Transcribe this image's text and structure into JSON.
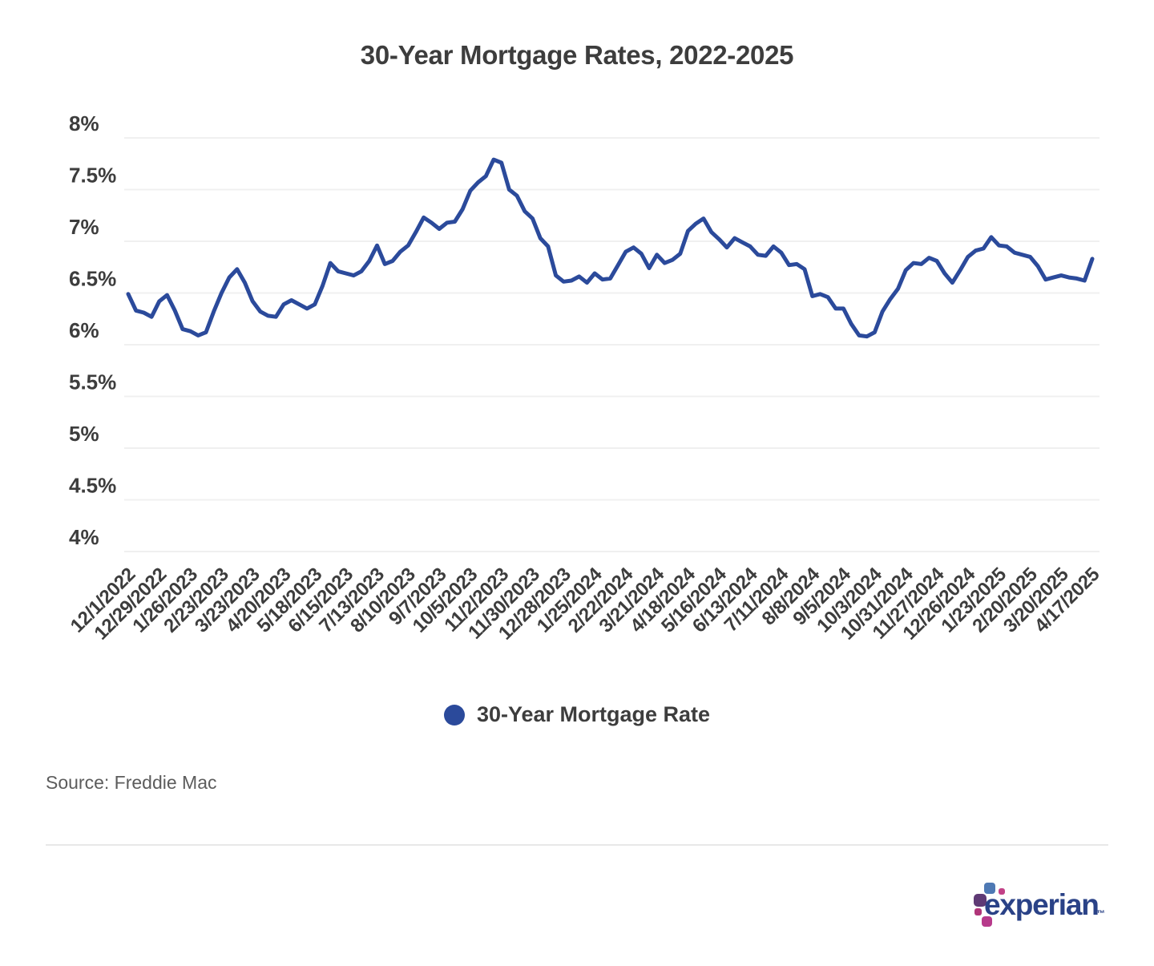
{
  "page": {
    "title": "30-Year Mortgage Rates, 2022-2025",
    "source": "Source: Freddie Mac",
    "brand": {
      "wordmark": "experian",
      "trademark": "™"
    }
  },
  "legend": {
    "label": "30-Year Mortgage Rate",
    "marker_color": "#2b4a9b"
  },
  "colors": {
    "line": "#2b4a9b",
    "text": "#3d3d3d",
    "grid": "#f0f0f0",
    "source_text": "#5c5c5c",
    "divider": "#e8e8e8",
    "experian_blue": "#2a4287"
  },
  "chart_data": {
    "type": "line",
    "title": "30-Year Mortgage Rates, 2022-2025",
    "xlabel": "",
    "ylabel": "",
    "ylim": [
      4,
      8
    ],
    "y_tick_values": [
      8,
      7.5,
      7,
      6.5,
      6,
      5.5,
      5,
      4.5,
      4
    ],
    "y_tick_labels": [
      "8%",
      "7.5%",
      "7%",
      "6.5%",
      "6%",
      "5.5%",
      "5%",
      "4.5%",
      "4%"
    ],
    "grid": "horizontal",
    "grid_color": "#f0f0f0",
    "legend_position": "bottom",
    "x_labels_shown_every": 4,
    "x": [
      "12/1/2022",
      "12/8/2022",
      "12/15/2022",
      "12/22/2022",
      "12/29/2022",
      "1/5/2023",
      "1/12/2023",
      "1/19/2023",
      "1/26/2023",
      "2/2/2023",
      "2/9/2023",
      "2/16/2023",
      "2/23/2023",
      "3/2/2023",
      "3/9/2023",
      "3/16/2023",
      "3/23/2023",
      "3/30/2023",
      "4/6/2023",
      "4/13/2023",
      "4/20/2023",
      "4/27/2023",
      "5/4/2023",
      "5/11/2023",
      "5/18/2023",
      "5/25/2023",
      "6/1/2023",
      "6/8/2023",
      "6/15/2023",
      "6/22/2023",
      "6/29/2023",
      "7/6/2023",
      "7/13/2023",
      "7/20/2023",
      "7/27/2023",
      "8/3/2023",
      "8/10/2023",
      "8/17/2023",
      "8/24/2023",
      "8/31/2023",
      "9/7/2023",
      "9/14/2023",
      "9/21/2023",
      "9/28/2023",
      "10/5/2023",
      "10/12/2023",
      "10/19/2023",
      "10/26/2023",
      "11/2/2023",
      "11/9/2023",
      "11/16/2023",
      "11/22/2023",
      "11/30/2023",
      "12/7/2023",
      "12/14/2023",
      "12/21/2023",
      "12/28/2023",
      "1/4/2024",
      "1/11/2024",
      "1/18/2024",
      "1/25/2024",
      "2/1/2024",
      "2/8/2024",
      "2/15/2024",
      "2/22/2024",
      "2/29/2024",
      "3/7/2024",
      "3/14/2024",
      "3/21/2024",
      "3/28/2024",
      "4/4/2024",
      "4/11/2024",
      "4/18/2024",
      "4/25/2024",
      "5/2/2024",
      "5/9/2024",
      "5/16/2024",
      "5/23/2024",
      "5/30/2024",
      "6/6/2024",
      "6/13/2024",
      "6/20/2024",
      "6/27/2024",
      "7/3/2024",
      "7/11/2024",
      "7/18/2024",
      "7/25/2024",
      "8/1/2024",
      "8/8/2024",
      "8/15/2024",
      "8/22/2024",
      "8/29/2024",
      "9/5/2024",
      "9/12/2024",
      "9/19/2024",
      "9/26/2024",
      "10/3/2024",
      "10/10/2024",
      "10/17/2024",
      "10/24/2024",
      "10/31/2024",
      "11/7/2024",
      "11/14/2024",
      "11/21/2024",
      "11/27/2024",
      "12/5/2024",
      "12/12/2024",
      "12/19/2024",
      "12/26/2024",
      "1/2/2025",
      "1/9/2025",
      "1/16/2025",
      "1/23/2025",
      "1/30/2025",
      "2/6/2025",
      "2/13/2025",
      "2/20/2025",
      "2/27/2025",
      "3/6/2025",
      "3/13/2025",
      "3/20/2025",
      "3/27/2025",
      "4/3/2025",
      "4/10/2025",
      "4/17/2025"
    ],
    "series": [
      {
        "name": "30-Year Mortgage Rate",
        "color": "#2b4a9b",
        "values": [
          6.49,
          6.33,
          6.31,
          6.27,
          6.42,
          6.48,
          6.33,
          6.15,
          6.13,
          6.09,
          6.12,
          6.32,
          6.5,
          6.65,
          6.73,
          6.6,
          6.42,
          6.32,
          6.28,
          6.27,
          6.39,
          6.43,
          6.39,
          6.35,
          6.39,
          6.57,
          6.79,
          6.71,
          6.69,
          6.67,
          6.71,
          6.81,
          6.96,
          6.78,
          6.81,
          6.9,
          6.96,
          7.09,
          7.23,
          7.18,
          7.12,
          7.18,
          7.19,
          7.31,
          7.49,
          7.57,
          7.63,
          7.79,
          7.76,
          7.5,
          7.44,
          7.29,
          7.22,
          7.03,
          6.95,
          6.67,
          6.61,
          6.62,
          6.66,
          6.6,
          6.69,
          6.63,
          6.64,
          6.77,
          6.9,
          6.94,
          6.88,
          6.74,
          6.87,
          6.79,
          6.82,
          6.88,
          7.1,
          7.17,
          7.22,
          7.09,
          7.02,
          6.94,
          7.03,
          6.99,
          6.95,
          6.87,
          6.86,
          6.95,
          6.89,
          6.77,
          6.78,
          6.73,
          6.47,
          6.49,
          6.46,
          6.35,
          6.35,
          6.2,
          6.09,
          6.08,
          6.12,
          6.32,
          6.44,
          6.54,
          6.72,
          6.79,
          6.78,
          6.84,
          6.81,
          6.69,
          6.6,
          6.72,
          6.85,
          6.91,
          6.93,
          7.04,
          6.96,
          6.95,
          6.89,
          6.87,
          6.85,
          6.76,
          6.63,
          6.65,
          6.67,
          6.65,
          6.64,
          6.62,
          6.83
        ]
      }
    ]
  }
}
